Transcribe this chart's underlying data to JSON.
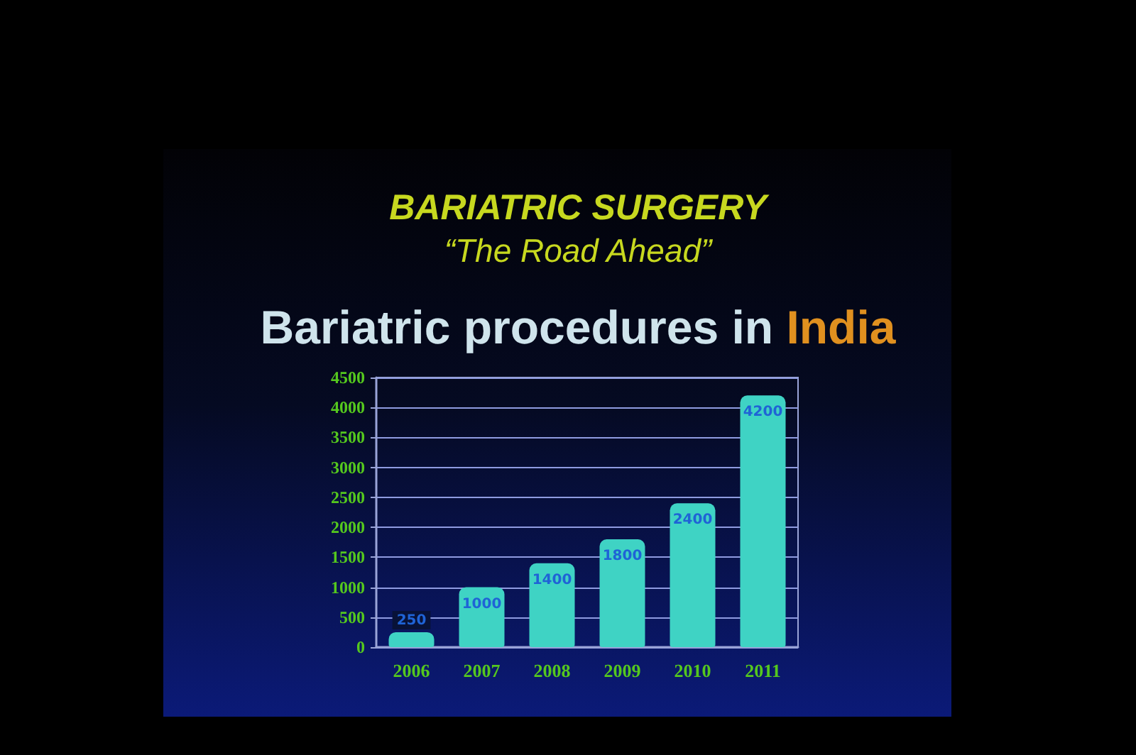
{
  "chart_data": {
    "type": "bar",
    "title": "BARIATRIC SURGERY",
    "subtitle": "“The Road Ahead”",
    "annotations": [
      "Bariatric procedures in India"
    ],
    "categories": [
      "2006",
      "2007",
      "2008",
      "2009",
      "2010",
      "2011"
    ],
    "values": [
      250,
      1000,
      1400,
      1800,
      2400,
      4200
    ],
    "color": "#3fd3c4",
    "ylim": [
      0,
      4500
    ],
    "yticks": [
      0,
      500,
      1000,
      1500,
      2000,
      2500,
      3000,
      3500,
      4000,
      4500
    ],
    "grid": true,
    "data_labels": true
  }
}
